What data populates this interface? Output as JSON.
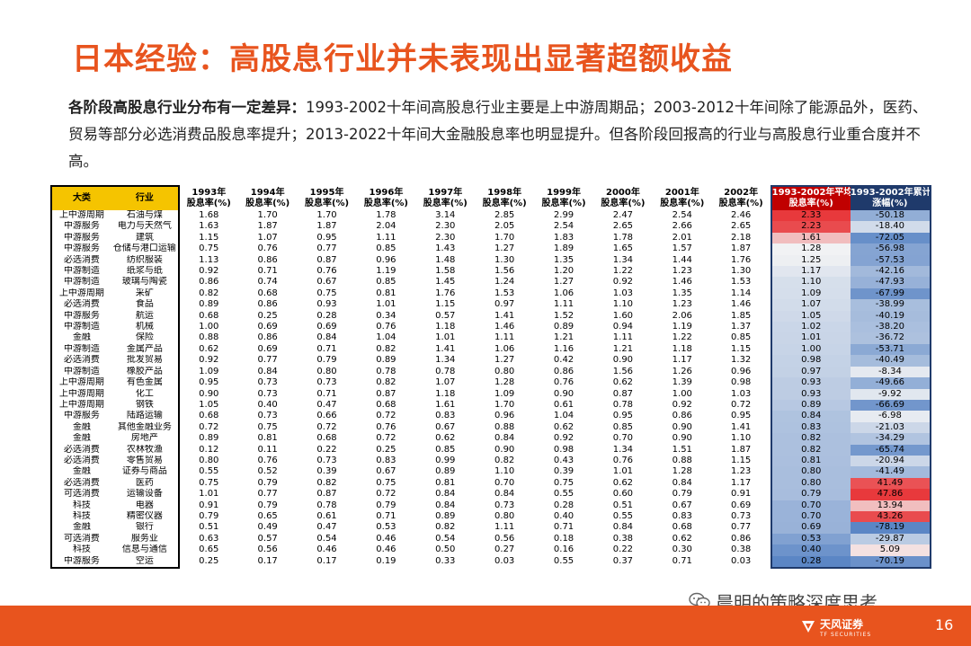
{
  "title": "日本经验：高股息行业并未表现出显著超额收益",
  "description": {
    "bold": "各阶段高股息行业分布有一定差异：",
    "text": "1993-2002十年间高股息行业主要是上中游周期品；2003-2012十年间除了能源品外，医药、贸易等部分必选消费品股息率提升；2013-2022十年间大金融股息率也明显提升。但各阶段回报高的行业与高股息行业重合度并不高。"
  },
  "table": {
    "headers": [
      "大类",
      "行业",
      "1993年\n股息率(%)",
      "1994年\n股息率(%)",
      "1995年\n股息率(%)",
      "1996年\n股息率(%)",
      "1997年\n股息率(%)",
      "1998年\n股息率(%)",
      "1999年\n股息率(%)",
      "2000年\n股息率(%)",
      "2001年\n股息率(%)",
      "2002年\n股息率(%)",
      "1993-2002年平均\n股息率(%)",
      "1993-2002年累计\n涨幅(%)"
    ],
    "rows": [
      [
        "上中游周期",
        "石油与煤",
        "1.68",
        "1.70",
        "1.70",
        "1.78",
        "3.14",
        "2.85",
        "2.99",
        "2.47",
        "2.54",
        "2.46",
        "2.33",
        "-50.18"
      ],
      [
        "中游服务",
        "电力与天然气",
        "1.63",
        "1.87",
        "1.87",
        "2.04",
        "2.30",
        "2.05",
        "2.54",
        "2.65",
        "2.66",
        "2.65",
        "2.23",
        "-18.40"
      ],
      [
        "中游服务",
        "建筑",
        "1.15",
        "1.07",
        "0.95",
        "1.11",
        "2.30",
        "1.70",
        "1.83",
        "1.78",
        "2.01",
        "2.18",
        "1.61",
        "-72.05"
      ],
      [
        "中游服务",
        "仓储与港口运输",
        "0.75",
        "0.76",
        "0.77",
        "0.85",
        "1.43",
        "1.27",
        "1.89",
        "1.65",
        "1.57",
        "1.87",
        "1.28",
        "-56.98"
      ],
      [
        "必选消费",
        "纺织服装",
        "1.13",
        "0.86",
        "0.87",
        "0.96",
        "1.48",
        "1.30",
        "1.35",
        "1.34",
        "1.44",
        "1.76",
        "1.25",
        "-57.53"
      ],
      [
        "中游制造",
        "纸浆与纸",
        "0.92",
        "0.71",
        "0.76",
        "1.19",
        "1.58",
        "1.56",
        "1.20",
        "1.22",
        "1.23",
        "1.30",
        "1.17",
        "-42.16"
      ],
      [
        "中游制造",
        "玻璃与陶瓷",
        "0.86",
        "0.74",
        "0.67",
        "0.85",
        "1.45",
        "1.24",
        "1.27",
        "0.92",
        "1.46",
        "1.53",
        "1.10",
        "-47.93"
      ],
      [
        "上中游周期",
        "采矿",
        "0.82",
        "0.68",
        "0.75",
        "0.81",
        "1.76",
        "1.53",
        "1.06",
        "1.03",
        "1.35",
        "1.14",
        "1.09",
        "-67.99"
      ],
      [
        "必选消费",
        "食品",
        "0.89",
        "0.86",
        "0.93",
        "1.01",
        "1.15",
        "0.97",
        "1.11",
        "1.10",
        "1.23",
        "1.46",
        "1.07",
        "-38.99"
      ],
      [
        "中游服务",
        "航运",
        "0.68",
        "0.25",
        "0.28",
        "0.34",
        "0.57",
        "1.41",
        "1.52",
        "1.60",
        "2.06",
        "1.85",
        "1.05",
        "-40.19"
      ],
      [
        "中游制造",
        "机械",
        "1.00",
        "0.69",
        "0.69",
        "0.76",
        "1.18",
        "1.46",
        "0.89",
        "0.94",
        "1.19",
        "1.37",
        "1.02",
        "-38.20"
      ],
      [
        "金融",
        "保险",
        "0.88",
        "0.86",
        "0.84",
        "1.04",
        "1.01",
        "1.11",
        "1.21",
        "1.11",
        "1.22",
        "0.85",
        "1.01",
        "-36.72"
      ],
      [
        "中游制造",
        "金属产品",
        "0.62",
        "0.69",
        "0.71",
        "0.82",
        "1.41",
        "1.06",
        "1.16",
        "1.21",
        "1.18",
        "1.15",
        "1.00",
        "-53.71"
      ],
      [
        "必选消费",
        "批发贸易",
        "0.92",
        "0.77",
        "0.79",
        "0.89",
        "1.34",
        "1.27",
        "0.42",
        "0.90",
        "1.17",
        "1.32",
        "0.98",
        "-40.49"
      ],
      [
        "中游制造",
        "橡胶产品",
        "1.09",
        "0.84",
        "0.80",
        "0.78",
        "0.78",
        "0.80",
        "0.86",
        "1.56",
        "1.26",
        "0.96",
        "0.97",
        "-8.34"
      ],
      [
        "上中游周期",
        "有色金属",
        "0.95",
        "0.73",
        "0.73",
        "0.82",
        "1.07",
        "1.28",
        "0.76",
        "0.62",
        "1.39",
        "0.98",
        "0.93",
        "-49.66"
      ],
      [
        "上中游周期",
        "化工",
        "0.90",
        "0.73",
        "0.71",
        "0.87",
        "1.18",
        "1.09",
        "0.90",
        "0.87",
        "1.00",
        "1.03",
        "0.93",
        "-9.92"
      ],
      [
        "上中游周期",
        "钢铁",
        "1.05",
        "0.40",
        "0.47",
        "0.68",
        "1.61",
        "1.70",
        "0.61",
        "0.78",
        "0.92",
        "0.72",
        "0.89",
        "-66.69"
      ],
      [
        "中游服务",
        "陆路运输",
        "0.68",
        "0.73",
        "0.66",
        "0.72",
        "0.83",
        "0.96",
        "1.04",
        "0.95",
        "0.86",
        "0.95",
        "0.84",
        "-6.98"
      ],
      [
        "金融",
        "其他金融业务",
        "0.72",
        "0.75",
        "0.72",
        "0.76",
        "0.67",
        "0.88",
        "0.62",
        "0.85",
        "0.90",
        "1.41",
        "0.83",
        "-21.03"
      ],
      [
        "金融",
        "房地产",
        "0.89",
        "0.81",
        "0.68",
        "0.72",
        "0.62",
        "0.84",
        "0.92",
        "0.70",
        "0.90",
        "1.10",
        "0.82",
        "-34.29"
      ],
      [
        "必选消费",
        "农林牧渔",
        "0.12",
        "0.11",
        "0.22",
        "0.25",
        "0.85",
        "0.90",
        "0.98",
        "1.34",
        "1.51",
        "1.87",
        "0.82",
        "-65.74"
      ],
      [
        "必选消费",
        "零售贸易",
        "0.80",
        "0.76",
        "0.73",
        "0.83",
        "0.99",
        "0.82",
        "0.43",
        "0.76",
        "0.88",
        "1.15",
        "0.81",
        "-20.94"
      ],
      [
        "金融",
        "证券与商品",
        "0.55",
        "0.52",
        "0.39",
        "0.67",
        "0.89",
        "1.10",
        "0.39",
        "1.01",
        "1.28",
        "1.23",
        "0.80",
        "-41.49"
      ],
      [
        "必选消费",
        "医药",
        "0.75",
        "0.79",
        "0.82",
        "0.75",
        "0.81",
        "0.70",
        "0.75",
        "0.62",
        "0.84",
        "1.17",
        "0.80",
        "41.49"
      ],
      [
        "可选消费",
        "运输设备",
        "1.01",
        "0.77",
        "0.87",
        "0.72",
        "0.84",
        "0.84",
        "0.55",
        "0.60",
        "0.79",
        "0.91",
        "0.79",
        "47.86"
      ],
      [
        "科技",
        "电器",
        "0.91",
        "0.79",
        "0.78",
        "0.79",
        "0.84",
        "0.73",
        "0.28",
        "0.51",
        "0.67",
        "0.69",
        "0.70",
        "13.94"
      ],
      [
        "科技",
        "精密仪器",
        "0.79",
        "0.65",
        "0.61",
        "0.71",
        "0.89",
        "0.80",
        "0.40",
        "0.55",
        "0.83",
        "0.73",
        "0.70",
        "43.26"
      ],
      [
        "金融",
        "银行",
        "0.51",
        "0.49",
        "0.47",
        "0.53",
        "0.82",
        "1.11",
        "0.71",
        "0.84",
        "0.68",
        "0.77",
        "0.69",
        "-78.19"
      ],
      [
        "可选消费",
        "服务业",
        "0.63",
        "0.57",
        "0.54",
        "0.46",
        "0.54",
        "0.56",
        "0.18",
        "0.38",
        "0.62",
        "0.86",
        "0.53",
        "-29.87"
      ],
      [
        "科技",
        "信息与通信",
        "0.65",
        "0.56",
        "0.46",
        "0.46",
        "0.50",
        "0.27",
        "0.16",
        "0.22",
        "0.30",
        "0.38",
        "0.40",
        "5.09"
      ],
      [
        "中游服务",
        "空运",
        "0.25",
        "0.17",
        "0.17",
        "0.19",
        "0.33",
        "0.03",
        "0.55",
        "0.37",
        "0.71",
        "0.03",
        "0.28",
        "-70.19"
      ]
    ],
    "colors": {
      "high_red": "#e8393c",
      "low_blue": "#5b86c5",
      "neutral": "#f5f5f5"
    }
  },
  "watermark": "晨明的策略深度思考",
  "footer": {
    "logo_text": "天风证券",
    "logo_sub": "TF SECURITIES",
    "page_number": "16"
  }
}
